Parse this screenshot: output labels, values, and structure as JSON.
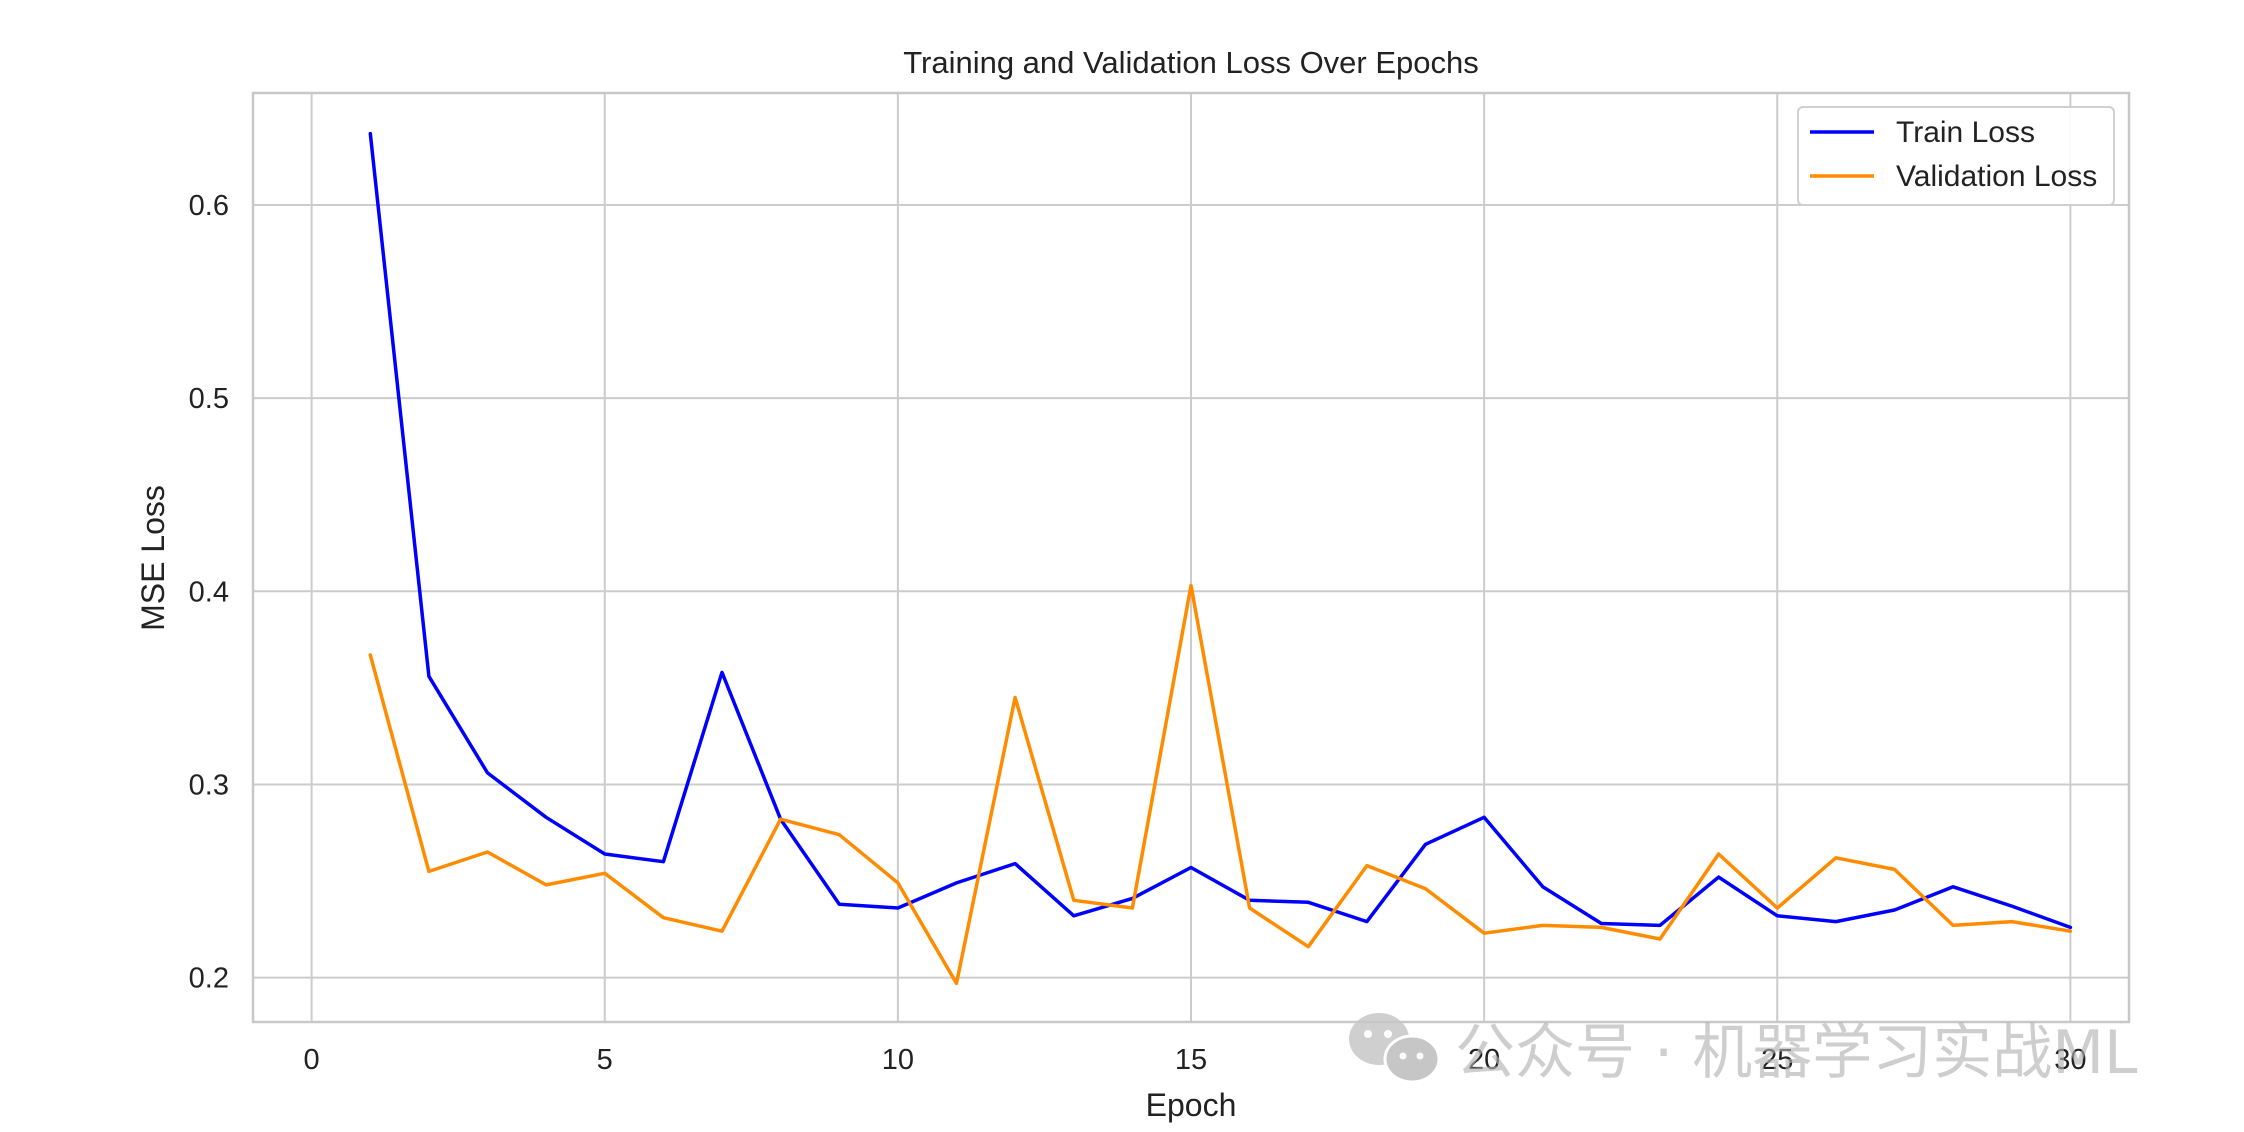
{
  "chart_data": {
    "type": "line",
    "title": "Training and Validation Loss Over Epochs",
    "xlabel": "Epoch",
    "ylabel": "MSE Loss",
    "xlim": [
      -1,
      31
    ],
    "ylim": [
      0.177,
      0.658
    ],
    "xticks": [
      0,
      5,
      10,
      15,
      20,
      25,
      30
    ],
    "yticks": [
      0.2,
      0.3,
      0.4,
      0.5,
      0.6
    ],
    "x": [
      1,
      2,
      3,
      4,
      5,
      6,
      7,
      8,
      9,
      10,
      11,
      12,
      13,
      14,
      15,
      16,
      17,
      18,
      19,
      20,
      21,
      22,
      23,
      24,
      25,
      26,
      27,
      28,
      29,
      30
    ],
    "series": [
      {
        "name": "Train Loss",
        "color": "#0000ff",
        "values": [
          0.637,
          0.356,
          0.306,
          0.283,
          0.264,
          0.26,
          0.358,
          0.282,
          0.238,
          0.236,
          0.249,
          0.259,
          0.232,
          0.241,
          0.257,
          0.24,
          0.239,
          0.229,
          0.269,
          0.283,
          0.247,
          0.228,
          0.227,
          0.252,
          0.232,
          0.229,
          0.235,
          0.247,
          0.237,
          0.226
        ]
      },
      {
        "name": "Validation Loss",
        "color": "#ff8c00",
        "values": [
          0.367,
          0.255,
          0.265,
          0.248,
          0.254,
          0.231,
          0.224,
          0.282,
          0.274,
          0.249,
          0.197,
          0.345,
          0.24,
          0.236,
          0.403,
          0.236,
          0.216,
          0.258,
          0.246,
          0.223,
          0.227,
          0.226,
          0.22,
          0.264,
          0.236,
          0.262,
          0.256,
          0.227,
          0.229,
          0.224
        ]
      }
    ],
    "grid": true,
    "legend_position": "top-right"
  },
  "watermark": {
    "text": "公众号 · 机器学习实战ML",
    "icon": "wechat-icon"
  }
}
